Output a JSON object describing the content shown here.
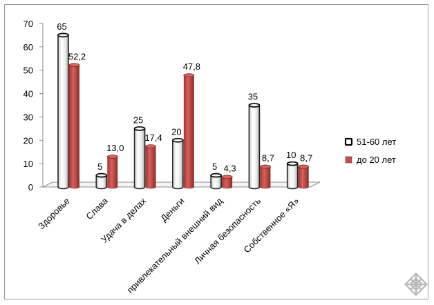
{
  "chart_data": {
    "type": "bar",
    "categories": [
      "Здоровье",
      "Слава",
      "Удача в делах",
      "Деньги",
      "привлекательный внешний вид",
      "Личная безопасность",
      "Собственное «Я»"
    ],
    "series": [
      {
        "name": "51-60 лет",
        "values": [
          65,
          5,
          25,
          20,
          5,
          35,
          10
        ],
        "labels": [
          "65",
          "5",
          "25",
          "20",
          "5",
          "35",
          "10"
        ],
        "color": "#e8e8e8"
      },
      {
        "name": "до 20 лет",
        "values": [
          52.2,
          13.0,
          17.4,
          47.8,
          4.3,
          8.7,
          8.7
        ],
        "labels": [
          "52,2",
          "13,0",
          "17,4",
          "47,8",
          "4,3",
          "8,7",
          "8,7"
        ],
        "color": "#c0504d"
      }
    ],
    "ylim": [
      0,
      70
    ],
    "yticks": [
      0,
      10,
      20,
      30,
      40,
      50,
      60,
      70
    ],
    "grid": false,
    "legend": "right",
    "style": "3d-cylinder"
  },
  "colors": {
    "series1": "#e8e8e8",
    "series2": "#c0504d",
    "axis": "#8c8c8c"
  },
  "watermark_icon": "endless-knot-icon"
}
